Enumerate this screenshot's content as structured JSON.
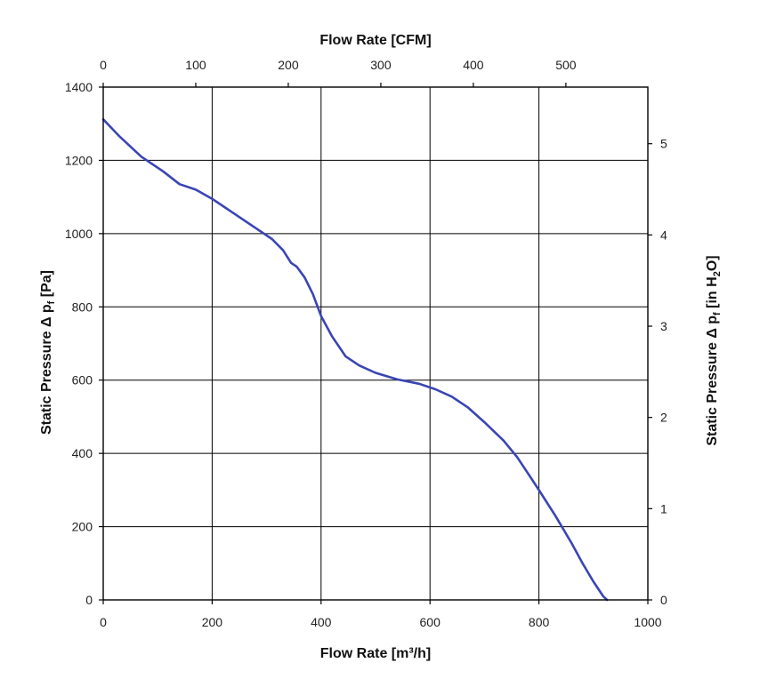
{
  "chart_data": {
    "type": "line",
    "grid": true,
    "xlabel_bottom": "Flow Rate [m³/h]",
    "xlabel_top": "Flow Rate [CFM]",
    "ylabel_left": {
      "main": "Static Pressure Δ p",
      "sub": "f",
      "tail": " [Pa]"
    },
    "ylabel_right": {
      "main": "Static Pressure Δ p",
      "sub": "f",
      "mid": " [in H",
      "sub2": "2",
      "tail": "O]"
    },
    "x_bottom_range": [
      0,
      1000
    ],
    "x_bottom_ticks": [
      "0",
      "200",
      "400",
      "600",
      "800",
      "1000"
    ],
    "x_top_ticks": [
      "0",
      "100",
      "200",
      "300",
      "400",
      "500"
    ],
    "y_left_range": [
      0,
      1400
    ],
    "y_left_ticks": [
      "0",
      "200",
      "400",
      "600",
      "800",
      "1000",
      "1200",
      "1400"
    ],
    "y_right_ticks": [
      "0",
      "1",
      "2",
      "3",
      "4",
      "5"
    ],
    "series": [
      {
        "color": "#3a45b5",
        "x": [
          0,
          30,
          70,
          110,
          140,
          170,
          200,
          240,
          280,
          310,
          330,
          345,
          355,
          370,
          385,
          400,
          420,
          445,
          470,
          500,
          540,
          580,
          610,
          640,
          670,
          700,
          735,
          760,
          780,
          800,
          830,
          860,
          880,
          900,
          918,
          925
        ],
        "y": [
          1312,
          1265,
          1210,
          1170,
          1135,
          1120,
          1095,
          1055,
          1015,
          985,
          955,
          920,
          910,
          880,
          835,
          775,
          720,
          665,
          640,
          620,
          602,
          590,
          575,
          555,
          525,
          485,
          435,
          390,
          345,
          300,
          230,
          155,
          100,
          50,
          10,
          0
        ]
      }
    ]
  }
}
